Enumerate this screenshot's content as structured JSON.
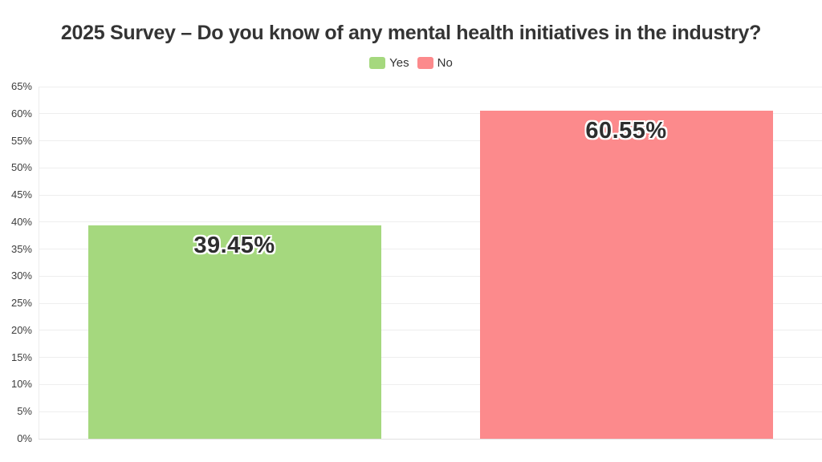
{
  "chart_data": {
    "type": "bar",
    "title": "2025 Survey – Do you know of any mental health initiatives in the industry?",
    "categories": [
      "Yes",
      "No"
    ],
    "values": [
      39.45,
      60.55
    ],
    "value_labels": [
      "39.45%",
      "60.55%"
    ],
    "bar_colors": [
      "#a5d87e",
      "#fc8a8c"
    ],
    "xlabel": "",
    "ylabel": "",
    "ylim": [
      0,
      65
    ],
    "ytick_step": 5,
    "ytick_labels": [
      "0%",
      "5%",
      "10%",
      "15%",
      "20%",
      "25%",
      "30%",
      "35%",
      "40%",
      "45%",
      "50%",
      "55%",
      "60%",
      "65%"
    ],
    "grid": "horizontal",
    "legend_position": "top",
    "legend": [
      {
        "label": "Yes",
        "color": "#a5d87e"
      },
      {
        "label": "No",
        "color": "#fc8a8c"
      }
    ]
  }
}
